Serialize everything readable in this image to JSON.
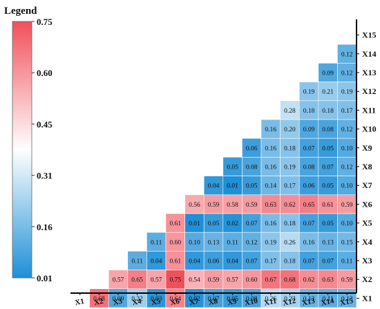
{
  "chart_data": {
    "type": "heatmap",
    "legend_title": "Legend",
    "legend_ticks": [
      "0.75",
      "0.60",
      "0.45",
      "0.31",
      "0.16",
      "0.01"
    ],
    "color_range": [
      0.01,
      0.75
    ],
    "colors": {
      "low": "#1f8fd6",
      "mid": "#ffffff",
      "high": "#f0505a"
    },
    "x_labels": [
      "X1",
      "X2",
      "X3",
      "X4",
      "X5",
      "X6",
      "X7",
      "X8",
      "X9",
      "X10",
      "X11",
      "X12",
      "X13",
      "X14",
      "X15"
    ],
    "y_labels": [
      "X15",
      "X14",
      "X13",
      "X12",
      "X11",
      "X10",
      "X9",
      "X8",
      "X7",
      "X6",
      "X5",
      "X4",
      "X3",
      "X2",
      "X1"
    ],
    "rows": [
      [
        null,
        null,
        null,
        null,
        null,
        null,
        null,
        null,
        null,
        null,
        null,
        null,
        null,
        null,
        null
      ],
      [
        null,
        null,
        null,
        null,
        null,
        null,
        null,
        null,
        null,
        null,
        null,
        null,
        null,
        null,
        0.12
      ],
      [
        null,
        null,
        null,
        null,
        null,
        null,
        null,
        null,
        null,
        null,
        null,
        null,
        null,
        0.09,
        0.12
      ],
      [
        null,
        null,
        null,
        null,
        null,
        null,
        null,
        null,
        null,
        null,
        null,
        null,
        0.19,
        0.21,
        0.19
      ],
      [
        null,
        null,
        null,
        null,
        null,
        null,
        null,
        null,
        null,
        null,
        null,
        0.28,
        0.18,
        0.18,
        0.17
      ],
      [
        null,
        null,
        null,
        null,
        null,
        null,
        null,
        null,
        null,
        null,
        0.16,
        0.2,
        0.09,
        0.08,
        0.12
      ],
      [
        null,
        null,
        null,
        null,
        null,
        null,
        null,
        null,
        null,
        0.06,
        0.16,
        0.18,
        0.07,
        0.05,
        0.1
      ],
      [
        null,
        null,
        null,
        null,
        null,
        null,
        null,
        null,
        0.05,
        0.08,
        0.16,
        0.19,
        0.08,
        0.07,
        0.12
      ],
      [
        null,
        null,
        null,
        null,
        null,
        null,
        null,
        0.04,
        0.01,
        0.05,
        0.14,
        0.17,
        0.06,
        0.05,
        0.1
      ],
      [
        null,
        null,
        null,
        null,
        null,
        null,
        0.56,
        0.59,
        0.58,
        0.59,
        0.63,
        0.62,
        0.65,
        0.61,
        0.59
      ],
      [
        null,
        null,
        null,
        null,
        null,
        0.61,
        0.01,
        0.05,
        0.02,
        0.07,
        0.16,
        0.18,
        0.07,
        0.05,
        0.1
      ],
      [
        null,
        null,
        null,
        null,
        0.11,
        0.6,
        0.1,
        0.13,
        0.11,
        0.12,
        0.19,
        0.26,
        0.16,
        0.13,
        0.15
      ],
      [
        null,
        null,
        null,
        0.11,
        0.04,
        0.61,
        0.04,
        0.06,
        0.04,
        0.07,
        0.17,
        0.18,
        0.07,
        0.07,
        0.11
      ],
      [
        null,
        null,
        0.57,
        0.65,
        0.57,
        0.75,
        0.54,
        0.59,
        0.57,
        0.6,
        0.67,
        0.68,
        0.62,
        0.63,
        0.59
      ],
      [
        null,
        0.68,
        0.09,
        0.22,
        0.03,
        0.64,
        0.02,
        0.07,
        0.05,
        0.08,
        0.26,
        0.23,
        0.13,
        0.11,
        0.13
      ]
    ]
  }
}
